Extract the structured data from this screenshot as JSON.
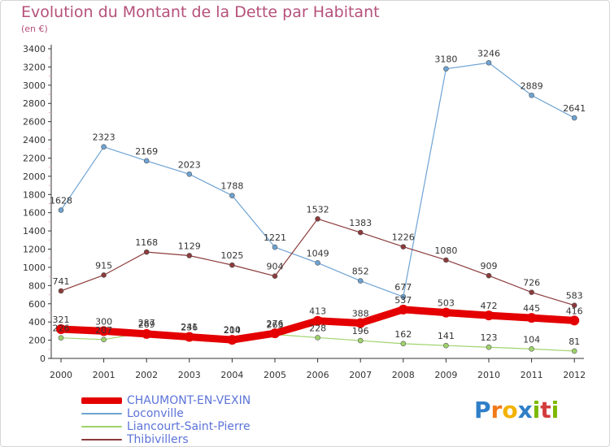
{
  "title": "Evolution du Montant de la Dette par Habitant",
  "subtitle": "(en €)",
  "logo": {
    "text": "Proxiti",
    "letters": [
      "P",
      "r",
      "o",
      "x",
      "i",
      "t",
      "i"
    ],
    "colors": [
      "#2f7fc8",
      "#f07a19",
      "#f2b200",
      "#2f7fc8",
      "#7cb800",
      "#d23c3c",
      "#7cb800"
    ]
  },
  "chart_data": {
    "type": "line",
    "title": "Evolution du Montant de la Dette par Habitant",
    "ylabel": "(en €)",
    "xlabel": "",
    "categories": [
      "2000",
      "2001",
      "2002",
      "2003",
      "2004",
      "2005",
      "2006",
      "2007",
      "2008",
      "2009",
      "2010",
      "2011",
      "2012"
    ],
    "ylim": [
      0,
      3400
    ],
    "yticks": [
      0,
      200,
      400,
      600,
      800,
      1000,
      1200,
      1400,
      1600,
      1800,
      2000,
      2200,
      2400,
      2600,
      2800,
      3000,
      3200,
      3400
    ],
    "grid": false,
    "legend_position": "bottom-left",
    "series": [
      {
        "name": "CHAUMONT-EN-VEXIN",
        "color": "#e40000",
        "width": 9,
        "values": [
          321,
          300,
          269,
          236,
          204,
          276,
          413,
          388,
          537,
          503,
          472,
          445,
          416
        ],
        "labels": [
          "321",
          "300",
          "269",
          "236",
          "204",
          "276",
          "413",
          "388",
          "537",
          "503",
          "472",
          "445",
          "416"
        ]
      },
      {
        "name": "Loconville",
        "color": "#6ea3d3",
        "width": 1.2,
        "values": [
          1628,
          2323,
          2169,
          2023,
          1788,
          1221,
          1049,
          852,
          677,
          3180,
          3246,
          2889,
          2641
        ],
        "labels": [
          "1628",
          "2323",
          "2169",
          "2023",
          "1788",
          "1221",
          "1049",
          "852",
          "677",
          "3180",
          "3246",
          "2889",
          "2641"
        ]
      },
      {
        "name": "Liancourt-Saint-Pierre",
        "color": "#9ed36b",
        "width": 1.2,
        "values": [
          226,
          207,
          287,
          241,
          210,
          263,
          228,
          196,
          162,
          141,
          123,
          104,
          81
        ],
        "labels": [
          "226",
          "207",
          "287",
          "241",
          "210",
          "263",
          "228",
          "196",
          "162",
          "141",
          "123",
          "104",
          "81"
        ]
      },
      {
        "name": "Thibivillers",
        "color": "#8c3a3a",
        "width": 1.2,
        "values": [
          741,
          915,
          1168,
          1129,
          1025,
          904,
          1532,
          1383,
          1226,
          1080,
          909,
          726,
          583
        ],
        "labels": [
          "741",
          "915",
          "1168",
          "1129",
          "1025",
          "904",
          "1532",
          "1383",
          "1226",
          "1080",
          "909",
          "726",
          "583"
        ]
      }
    ]
  }
}
